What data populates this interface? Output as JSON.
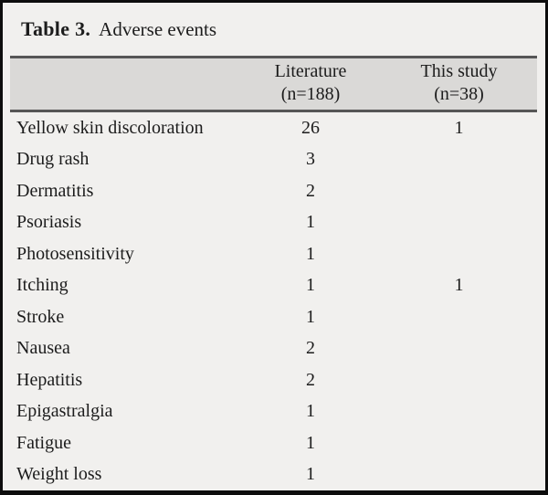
{
  "title": {
    "label": "Table 3.",
    "caption": "Adverse events"
  },
  "table": {
    "columns": [
      {
        "label": ""
      },
      {
        "line1": "Literature",
        "line2": "(n=188)"
      },
      {
        "line1": "This study",
        "line2": "(n=38)"
      }
    ],
    "rows": [
      {
        "label": "Yellow skin discoloration",
        "literature": "26",
        "this_study": "1"
      },
      {
        "label": "Drug rash",
        "literature": "3",
        "this_study": ""
      },
      {
        "label": "Dermatitis",
        "literature": "2",
        "this_study": ""
      },
      {
        "label": "Psoriasis",
        "literature": "1",
        "this_study": ""
      },
      {
        "label": "Photosensitivity",
        "literature": "1",
        "this_study": ""
      },
      {
        "label": "Itching",
        "literature": "1",
        "this_study": "1"
      },
      {
        "label": "Stroke",
        "literature": "1",
        "this_study": ""
      },
      {
        "label": "Nausea",
        "literature": "2",
        "this_study": ""
      },
      {
        "label": "Hepatitis",
        "literature": "2",
        "this_study": ""
      },
      {
        "label": "Epigastralgia",
        "literature": "1",
        "this_study": ""
      },
      {
        "label": "Fatigue",
        "literature": "1",
        "this_study": ""
      },
      {
        "label": "Weight loss",
        "literature": "1",
        "this_study": ""
      }
    ]
  },
  "colors": {
    "page_background": "#f1f0ee",
    "header_band": "#dad9d7",
    "rule": "#565656",
    "frame_border": "#0d0d0d",
    "text": "#1c1c1c"
  },
  "chart_data": {
    "type": "table",
    "title": "Table 3. Adverse events",
    "columns": [
      "",
      "Literature (n=188)",
      "This study (n=38)"
    ],
    "rows": [
      [
        "Yellow skin discoloration",
        26,
        1
      ],
      [
        "Drug rash",
        3,
        null
      ],
      [
        "Dermatitis",
        2,
        null
      ],
      [
        "Psoriasis",
        1,
        null
      ],
      [
        "Photosensitivity",
        1,
        null
      ],
      [
        "Itching",
        1,
        1
      ],
      [
        "Stroke",
        1,
        null
      ],
      [
        "Nausea",
        2,
        null
      ],
      [
        "Hepatitis",
        2,
        null
      ],
      [
        "Epigastralgia",
        1,
        null
      ],
      [
        "Fatigue",
        1,
        null
      ],
      [
        "Weight loss",
        1,
        null
      ]
    ]
  }
}
